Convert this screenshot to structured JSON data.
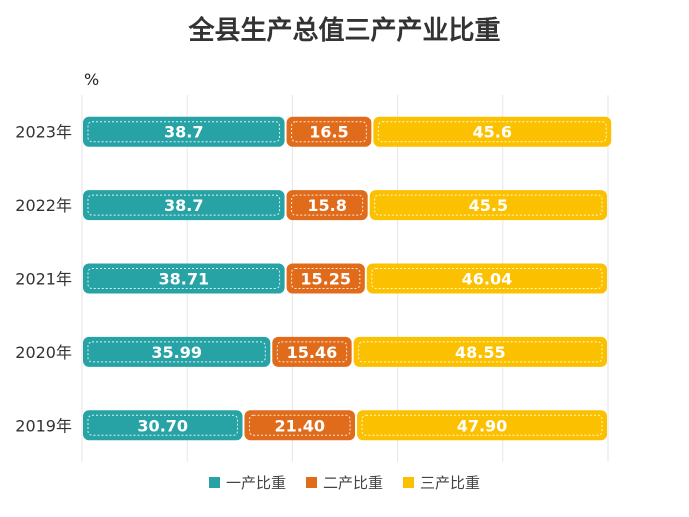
{
  "title": "全县生产总值三产产业比重",
  "unit": "%",
  "colors": [
    "#27a3a6",
    "#e06b1a",
    "#fbc100"
  ],
  "chart_data": {
    "type": "bar",
    "orientation": "horizontal",
    "stacked": true,
    "categories": [
      "2023年",
      "2022年",
      "2021年",
      "2020年",
      "2019年"
    ],
    "series": [
      {
        "name": "一产比重",
        "values": [
          38.7,
          38.7,
          38.71,
          35.99,
          30.7
        ],
        "labels": [
          "38.7",
          "38.7",
          "38.71",
          "35.99",
          "30.70"
        ]
      },
      {
        "name": "二产比重",
        "values": [
          16.5,
          15.8,
          15.25,
          15.46,
          21.4
        ],
        "labels": [
          "16.5",
          "15.8",
          "15.25",
          "15.46",
          "21.40"
        ]
      },
      {
        "name": "三产比重",
        "values": [
          45.6,
          45.5,
          46.04,
          48.55,
          47.9
        ],
        "labels": [
          "45.6",
          "45.5",
          "46.04",
          "48.55",
          "47.90"
        ]
      }
    ],
    "xlim": [
      0,
      100
    ],
    "grid": true,
    "legend": "bottom"
  }
}
